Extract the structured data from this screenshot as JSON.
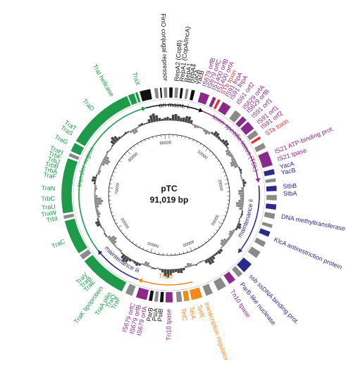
{
  "plasmid": {
    "name": "pTC",
    "size_label": "91,019 bp"
  },
  "colors": {
    "transfer": "#1e9a4a",
    "maintenance_blue": "#2a2a8a",
    "toxin": "#8a2a8a",
    "tn10": "#f08a20",
    "red": "#e03030",
    "grey": "#8a8a8a",
    "black": "#111111"
  },
  "ticks": [
    "10000",
    "20000",
    "30000",
    "40000",
    "50000",
    "60000",
    "70000",
    "80000",
    "90000"
  ],
  "regions": [
    {
      "id": "ori-maint",
      "label": "ori  maint. i.",
      "color": "#111111",
      "start": 345,
      "end": 22
    },
    {
      "id": "tsl",
      "label": "toxin specific locus (TSL)",
      "color": "#8a2a8a",
      "start": 22,
      "end": 82
    },
    {
      "id": "maint-ii",
      "label": "maintenance ii",
      "color": "#2a2a8a",
      "start": 84,
      "end": 130
    },
    {
      "id": "tn10-region",
      "label": "Tn10",
      "color": "#f08a20",
      "start": 165,
      "end": 200
    },
    {
      "id": "maint-iii",
      "label": "maintenance iii",
      "color": "#2a2a8a",
      "start": 200,
      "end": 232
    },
    {
      "id": "transfer-region",
      "label": "transfer region",
      "color": "#1e9a4a",
      "start": 232,
      "end": 345
    }
  ],
  "labels": [
    {
      "text": "TraX",
      "angle": 344,
      "color": "#1e9a4a"
    },
    {
      "text": "TraI helicase",
      "angle": 330,
      "color": "#1e9a4a"
    },
    {
      "text": "FinO conjugal repressor",
      "angle": 358,
      "color": "#111111"
    },
    {
      "text": "RepA2 (CopB)",
      "angle": 4,
      "color": "#111111"
    },
    {
      "text": "RepA1 (CopA/IncA)",
      "angle": 6.5,
      "color": "#111111"
    },
    {
      "text": "RepA1",
      "angle": 9,
      "color": "#111111"
    },
    {
      "text": "RepA4",
      "angle": 11,
      "color": "#111111"
    },
    {
      "text": "YacA",
      "angle": 13,
      "color": "#111111"
    },
    {
      "text": "YacB",
      "angle": 15,
      "color": "#111111"
    },
    {
      "text": "IS679 orfB",
      "angle": 18,
      "color": "#8a2a8a"
    },
    {
      "text": "IS679 orfC",
      "angle": 20.5,
      "color": "#8a2a8a"
    },
    {
      "text": "IS1400 orfB",
      "angle": 23,
      "color": "#8a2a8a"
    },
    {
      "text": "IS1400 orfA",
      "angle": 25.5,
      "color": "#8a2a8a"
    },
    {
      "text": "STb toxin",
      "angle": 28,
      "color": "#e03030"
    },
    {
      "text": "IS91 fnpA",
      "angle": 30.5,
      "color": "#8a2a8a"
    },
    {
      "text": "IS91 fnpA",
      "angle": 33,
      "color": "#8a2a8a"
    },
    {
      "text": "IS91 orf2",
      "angle": 37,
      "color": "#8a2a8a"
    },
    {
      "text": "IS629 orfA",
      "angle": 41,
      "color": "#8a2a8a"
    },
    {
      "text": "IS629 orfB",
      "angle": 43.5,
      "color": "#8a2a8a"
    },
    {
      "text": "IS91 orf1",
      "angle": 47,
      "color": "#8a2a8a"
    },
    {
      "text": "IS91 orf1",
      "angle": 51,
      "color": "#8a2a8a"
    },
    {
      "text": "IS91 orf2",
      "angle": 54,
      "color": "#8a2a8a"
    },
    {
      "text": "STa toxin",
      "angle": 58,
      "color": "#e03030"
    },
    {
      "text": "IS21 ATP-binding prot.",
      "angle": 68,
      "color": "#8a2a8a"
    },
    {
      "text": "IS21 tpase",
      "angle": 72,
      "color": "#8a2a8a"
    },
    {
      "text": "YacA",
      "angle": 76,
      "color": "#2a2a8a"
    },
    {
      "text": "YacB",
      "angle": 79,
      "color": "#2a2a8a"
    },
    {
      "text": "StbB",
      "angle": 86,
      "color": "#2a2a8a"
    },
    {
      "text": "StbA",
      "angle": 89.5,
      "color": "#2a2a8a"
    },
    {
      "text": "DNA methyltransferase",
      "angle": 101,
      "color": "#2a2a8a"
    },
    {
      "text": "KlcA antirestriction protein",
      "angle": 113,
      "color": "#2a2a8a"
    },
    {
      "text": "ssb ssDNA binding prot.",
      "angle": 135,
      "color": "#2a2a8a"
    },
    {
      "text": "ParB-like nuclease",
      "angle": 141,
      "color": "#2a2a8a"
    },
    {
      "text": "Tn10 tpase",
      "angle": 147,
      "color": "#8a2a8a"
    },
    {
      "text": "transcription regulator",
      "angle": 161,
      "color": "#f08a20"
    },
    {
      "text": "TetR",
      "angle": 165,
      "color": "#f08a20"
    },
    {
      "text": "TetA",
      "angle": 169,
      "color": "#f08a20"
    },
    {
      "text": "TetC",
      "angle": 173,
      "color": "#f08a20"
    },
    {
      "text": "Tn10 tpase",
      "angle": 180,
      "color": "#8a2a8a"
    },
    {
      "text": "PsiB",
      "angle": 184,
      "color": "#111111"
    },
    {
      "text": "PsiA",
      "angle": 186.5,
      "color": "#111111"
    },
    {
      "text": "ParB",
      "angle": 189,
      "color": "#111111"
    },
    {
      "text": "IS679 orfA",
      "angle": 192,
      "color": "#8a2a8a"
    },
    {
      "text": "IS679 orfB",
      "angle": 195,
      "color": "#8a2a8a"
    },
    {
      "text": "IS679 orfC",
      "angle": 198,
      "color": "#8a2a8a"
    },
    {
      "text": "TraF",
      "angle": 206,
      "color": "#1e9a4a"
    },
    {
      "text": "TraQ",
      "angle": 208.5,
      "color": "#1e9a4a"
    },
    {
      "text": "TraA pilin",
      "angle": 211,
      "color": "#1e9a4a"
    },
    {
      "text": "TraK lipoprotein",
      "angle": 216,
      "color": "#1e9a4a"
    },
    {
      "text": "TraE",
      "angle": 221,
      "color": "#1e9a4a"
    },
    {
      "text": "TraB",
      "angle": 223.5,
      "color": "#1e9a4a"
    },
    {
      "text": "TraV",
      "angle": 226,
      "color": "#1e9a4a"
    },
    {
      "text": "TraC",
      "angle": 246,
      "color": "#1e9a4a"
    },
    {
      "text": "TrbI",
      "angle": 258,
      "color": "#1e9a4a"
    },
    {
      "text": "TraW",
      "angle": 261,
      "color": "#1e9a4a"
    },
    {
      "text": "TraU",
      "angle": 264,
      "color": "#1e9a4a"
    },
    {
      "text": "TrbC",
      "angle": 268,
      "color": "#1e9a4a"
    },
    {
      "text": "TraN",
      "angle": 273,
      "color": "#1e9a4a"
    },
    {
      "text": "TraF",
      "angle": 279,
      "color": "#1e9a4a"
    },
    {
      "text": "TrbA",
      "angle": 281.5,
      "color": "#1e9a4a"
    },
    {
      "text": "TrbB",
      "angle": 284,
      "color": "#1e9a4a"
    },
    {
      "text": "TrbJ",
      "angle": 286.5,
      "color": "#1e9a4a"
    },
    {
      "text": "TrbF",
      "angle": 289,
      "color": "#1e9a4a"
    },
    {
      "text": "TraH",
      "angle": 291.5,
      "color": "#1e9a4a"
    },
    {
      "text": "TraG",
      "angle": 297,
      "color": "#1e9a4a"
    },
    {
      "text": "TraS",
      "angle": 302,
      "color": "#1e9a4a"
    },
    {
      "text": "TraT",
      "angle": 305,
      "color": "#1e9a4a"
    },
    {
      "text": "TraD",
      "angle": 318,
      "color": "#1e9a4a"
    }
  ],
  "genes": [
    {
      "start": 300,
      "end": 337,
      "color": "#1e9a4a"
    },
    {
      "start": 337.5,
      "end": 341,
      "color": "#1e9a4a"
    },
    {
      "start": 341.5,
      "end": 343,
      "color": "#1e9a4a"
    },
    {
      "start": 344,
      "end": 350,
      "color": "#111111"
    },
    {
      "start": 352,
      "end": 354,
      "color": "#8a8a8a"
    },
    {
      "start": 355,
      "end": 356,
      "color": "#111111"
    },
    {
      "start": 357,
      "end": 359,
      "color": "#8a8a8a"
    },
    {
      "start": 0,
      "end": 2,
      "color": "#111111"
    },
    {
      "start": 3,
      "end": 5,
      "color": "#8a8a8a"
    },
    {
      "start": 6,
      "end": 7.5,
      "color": "#111111"
    },
    {
      "start": 9,
      "end": 10.5,
      "color": "#8a8a8a"
    },
    {
      "start": 12,
      "end": 14,
      "color": "#111111"
    },
    {
      "start": 17,
      "end": 22,
      "color": "#8a2a8a"
    },
    {
      "start": 24,
      "end": 26,
      "color": "#8a2a8a"
    },
    {
      "start": 27,
      "end": 28.5,
      "color": "#e03030"
    },
    {
      "start": 30,
      "end": 35,
      "color": "#8a2a8a"
    },
    {
      "start": 38,
      "end": 42,
      "color": "#8a8a8a"
    },
    {
      "start": 43,
      "end": 46,
      "color": "#8a2a8a"
    },
    {
      "start": 47,
      "end": 52,
      "color": "#8a2a8a"
    },
    {
      "start": 53,
      "end": 56,
      "color": "#8a8a8a"
    },
    {
      "start": 57,
      "end": 58.5,
      "color": "#e03030"
    },
    {
      "start": 61,
      "end": 64,
      "color": "#8a8a8a"
    },
    {
      "start": 66,
      "end": 74,
      "color": "#8a2a8a"
    },
    {
      "start": 76,
      "end": 79,
      "color": "#2a2a8a"
    },
    {
      "start": 81,
      "end": 83,
      "color": "#8a8a8a"
    },
    {
      "start": 85,
      "end": 88,
      "color": "#2a2a8a"
    },
    {
      "start": 90,
      "end": 93,
      "color": "#8a8a8a"
    },
    {
      "start": 95,
      "end": 98,
      "color": "#2a2a8a"
    },
    {
      "start": 100,
      "end": 103,
      "color": "#8a8a8a"
    },
    {
      "start": 106,
      "end": 108,
      "color": "#8a8a8a"
    },
    {
      "start": 110,
      "end": 113,
      "color": "#2a2a8a"
    },
    {
      "start": 116,
      "end": 119,
      "color": "#8a8a8a"
    },
    {
      "start": 122,
      "end": 126,
      "color": "#8a8a8a"
    },
    {
      "start": 130,
      "end": 136,
      "color": "#2a2a8a"
    },
    {
      "start": 137,
      "end": 140,
      "color": "#8a8a8a"
    },
    {
      "start": 142,
      "end": 146,
      "color": "#8a2a8a"
    },
    {
      "start": 148,
      "end": 153,
      "color": "#8a8a8a"
    },
    {
      "start": 156,
      "end": 160,
      "color": "#8a8a8a"
    },
    {
      "start": 162,
      "end": 168,
      "color": "#f08a20"
    },
    {
      "start": 169,
      "end": 172,
      "color": "#f08a20"
    },
    {
      "start": 173,
      "end": 176,
      "color": "#8a8a8a"
    },
    {
      "start": 178,
      "end": 182,
      "color": "#8a2a8a"
    },
    {
      "start": 183,
      "end": 185,
      "color": "#111111"
    },
    {
      "start": 186,
      "end": 188,
      "color": "#8a8a8a"
    },
    {
      "start": 189,
      "end": 191,
      "color": "#111111"
    },
    {
      "start": 192,
      "end": 198,
      "color": "#8a2a8a"
    },
    {
      "start": 200,
      "end": 204,
      "color": "#8a8a8a"
    },
    {
      "start": 206,
      "end": 232,
      "color": "#1e9a4a"
    },
    {
      "start": 233,
      "end": 236,
      "color": "#8a8a8a"
    },
    {
      "start": 237,
      "end": 256,
      "color": "#1e9a4a"
    },
    {
      "start": 257,
      "end": 259,
      "color": "#8a8a8a"
    },
    {
      "start": 260,
      "end": 290,
      "color": "#1e9a4a"
    },
    {
      "start": 291,
      "end": 293,
      "color": "#8a8a8a"
    },
    {
      "start": 294,
      "end": 299,
      "color": "#1e9a4a"
    }
  ]
}
